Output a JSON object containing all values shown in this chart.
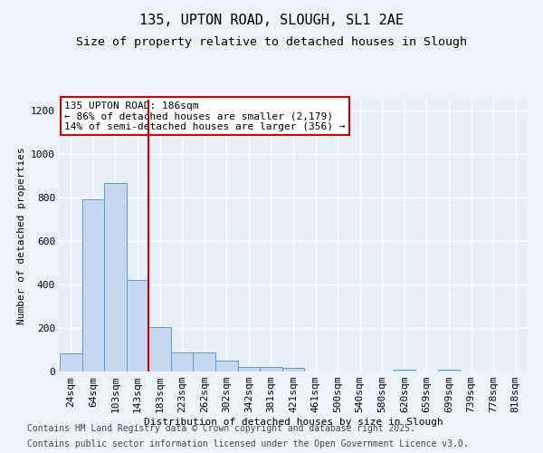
{
  "title": "135, UPTON ROAD, SLOUGH, SL1 2AE",
  "subtitle": "Size of property relative to detached houses in Slough",
  "xlabel": "Distribution of detached houses by size in Slough",
  "ylabel": "Number of detached properties",
  "categories": [
    "24sqm",
    "64sqm",
    "103sqm",
    "143sqm",
    "183sqm",
    "223sqm",
    "262sqm",
    "302sqm",
    "342sqm",
    "381sqm",
    "421sqm",
    "461sqm",
    "500sqm",
    "540sqm",
    "580sqm",
    "620sqm",
    "659sqm",
    "699sqm",
    "739sqm",
    "778sqm",
    "818sqm"
  ],
  "values": [
    85,
    790,
    865,
    420,
    205,
    88,
    88,
    50,
    22,
    22,
    15,
    0,
    0,
    0,
    0,
    8,
    0,
    8,
    0,
    0,
    0
  ],
  "bar_color": "#c5d8f0",
  "bar_edge_color": "#5a9fd4",
  "property_line_x": 3.5,
  "property_line_color": "#cc0000",
  "annotation_text": "135 UPTON ROAD: 186sqm\n← 86% of detached houses are smaller (2,179)\n14% of semi-detached houses are larger (356) →",
  "annotation_box_color": "#cc0000",
  "ylim": [
    0,
    1250
  ],
  "yticks": [
    0,
    200,
    400,
    600,
    800,
    1000,
    1200
  ],
  "footer_line1": "Contains HM Land Registry data © Crown copyright and database right 2025.",
  "footer_line2": "Contains public sector information licensed under the Open Government Licence v3.0.",
  "bg_color": "#eef3fa",
  "plot_bg_color": "#e8eff8",
  "grid_color": "#ffffff",
  "title_fontsize": 11,
  "subtitle_fontsize": 9.5,
  "axis_fontsize": 8,
  "tick_fontsize": 8,
  "footer_fontsize": 7
}
